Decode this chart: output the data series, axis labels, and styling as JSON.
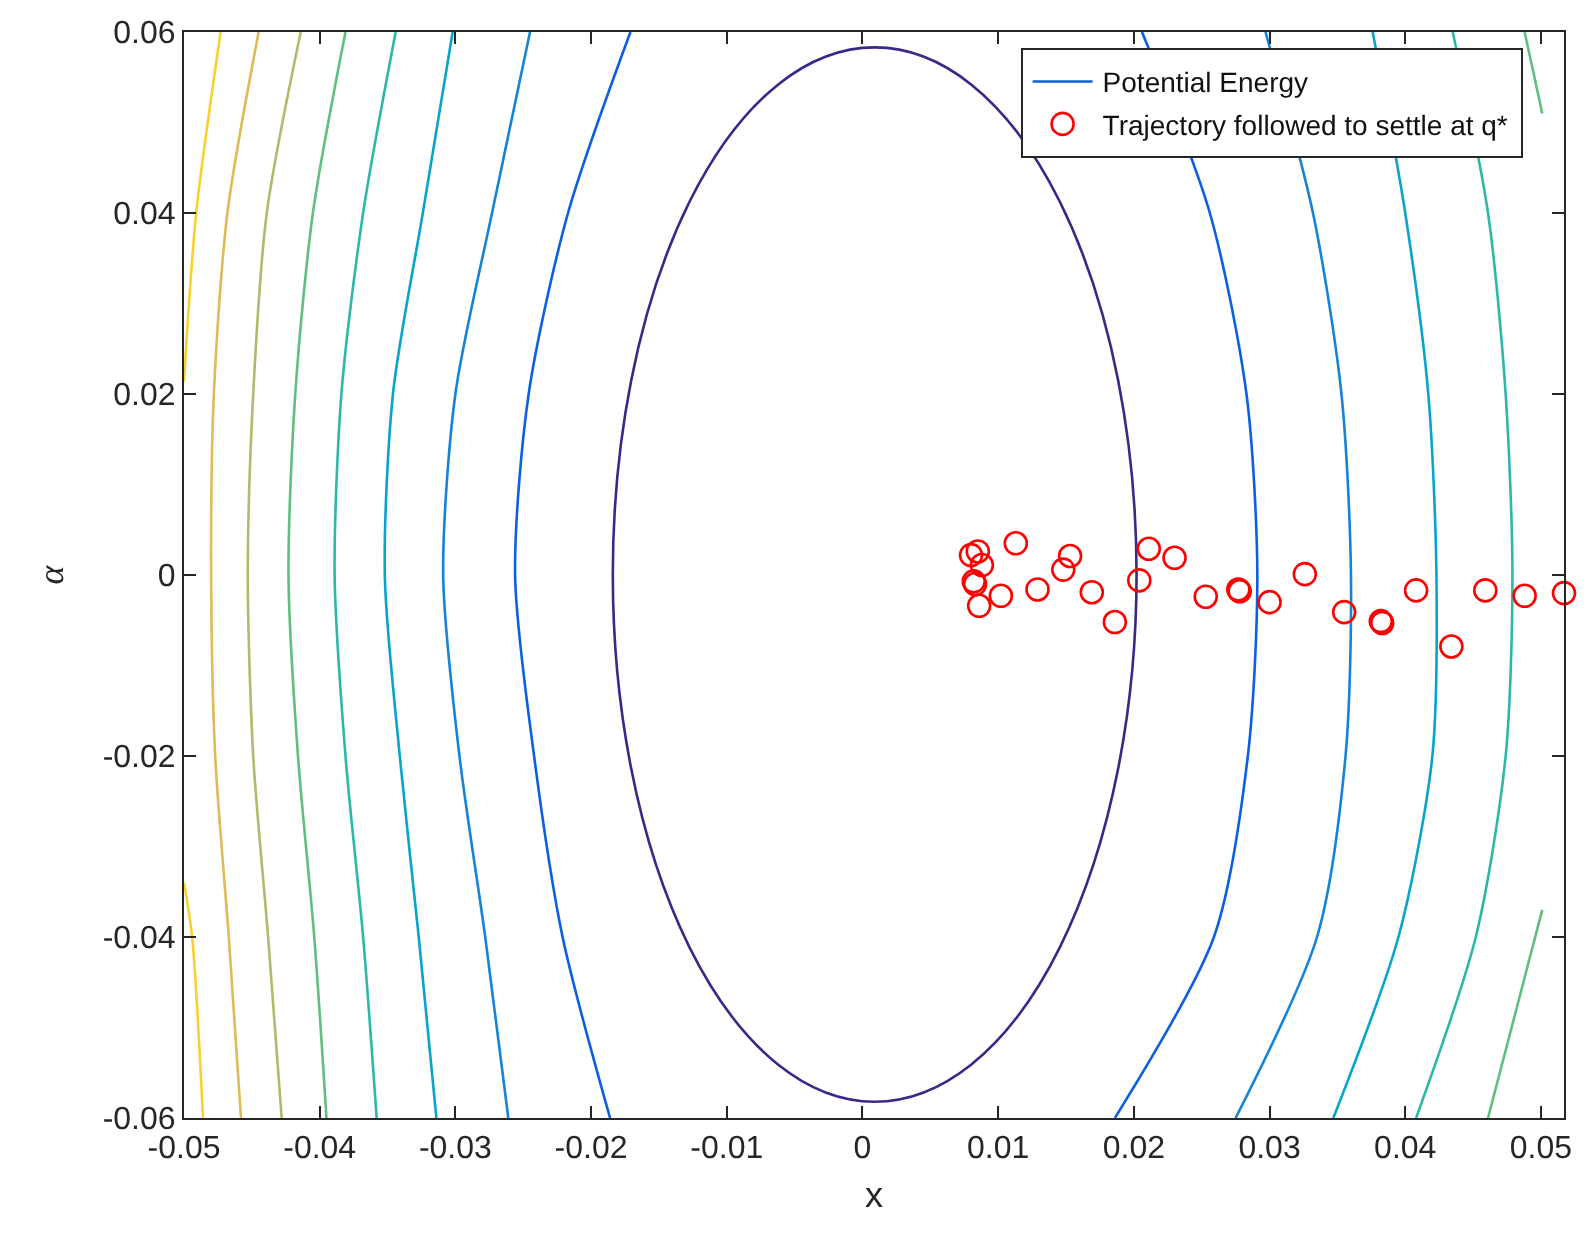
{
  "chart_data": {
    "type": "scatter",
    "xlabel": "x",
    "ylabel": "α",
    "xlim": [
      -0.05,
      0.0517
    ],
    "xticks": [
      -0.05,
      -0.04,
      -0.03,
      -0.02,
      -0.01,
      0,
      0.01,
      0.02,
      0.03,
      0.04,
      0.05
    ],
    "ylim": [
      -0.06,
      0.06
    ],
    "yticks": [
      -0.06,
      -0.04,
      -0.02,
      0,
      0.02,
      0.04,
      0.06
    ],
    "grid": false,
    "legend": "top right",
    "series": [
      {
        "name": "Potential Energy",
        "type": "line",
        "marker": "none",
        "line_style": "solid",
        "color": "#0b5fe0",
        "x": [
          -0.0171,
          -0.0217,
          -0.0246,
          -0.0256,
          -0.0242,
          -0.0221,
          -0.0186
        ],
        "values": [
          0.06,
          0.04,
          0.02,
          0,
          -0.02,
          -0.04,
          -0.06
        ]
      },
      {
        "type": "line",
        "marker": "none",
        "line_style": "solid",
        "color": "#0b5fe0",
        "x": [
          0.0206,
          0.0256,
          0.0283,
          0.0291,
          0.0284,
          0.0259,
          0.0186
        ],
        "values": [
          0.06,
          0.04,
          0.02,
          0,
          -0.02,
          -0.04,
          -0.06
        ]
      },
      {
        "type": "line",
        "marker": "none",
        "line_style": "solid",
        "color": "#1483d8",
        "x": [
          -0.0245,
          -0.0273,
          -0.03,
          -0.0309,
          -0.0297,
          -0.0278,
          -0.0261
        ],
        "values": [
          0.06,
          0.04,
          0.02,
          0,
          -0.02,
          -0.04,
          -0.06
        ]
      },
      {
        "type": "line",
        "marker": "none",
        "line_style": "solid",
        "color": "#1483d8",
        "x": [
          0.0297,
          0.0332,
          0.0353,
          0.036,
          0.0356,
          0.0335,
          0.0275
        ],
        "values": [
          0.06,
          0.04,
          0.02,
          0,
          -0.02,
          -0.04,
          -0.06
        ]
      },
      {
        "type": "line",
        "marker": "none",
        "line_style": "solid",
        "color": "#08a4cc",
        "x": [
          -0.0302,
          -0.0324,
          -0.0346,
          -0.0352,
          -0.0341,
          -0.0327,
          -0.0314
        ],
        "values": [
          0.06,
          0.04,
          0.02,
          0,
          -0.02,
          -0.04,
          -0.06
        ]
      },
      {
        "type": "line",
        "marker": "none",
        "line_style": "solid",
        "color": "#08a4cc",
        "x": [
          0.0376,
          0.04,
          0.0417,
          0.0423,
          0.042,
          0.0395,
          0.0347
        ],
        "values": [
          0.06,
          0.04,
          0.02,
          0,
          -0.02,
          -0.04,
          -0.06
        ]
      },
      {
        "type": "line",
        "marker": "none",
        "line_style": "solid",
        "color": "#2db7a8",
        "x": [
          -0.0344,
          -0.0368,
          -0.0384,
          -0.0389,
          -0.0381,
          -0.0368,
          -0.0358
        ],
        "values": [
          0.06,
          0.04,
          0.02,
          0,
          -0.02,
          -0.04,
          -0.06
        ]
      },
      {
        "type": "line",
        "marker": "none",
        "line_style": "solid",
        "color": "#2db7a8",
        "x": [
          0.0435,
          0.0461,
          0.0474,
          0.0479,
          0.0474,
          0.0452,
          0.0408
        ],
        "values": [
          0.06,
          0.04,
          0.02,
          0,
          -0.02,
          -0.04,
          -0.06
        ]
      },
      {
        "type": "line",
        "marker": "none",
        "line_style": "solid",
        "color": "#5fbf7c",
        "x": [
          -0.0381,
          -0.0405,
          -0.0418,
          -0.0423,
          -0.0416,
          -0.0404,
          -0.0395
        ],
        "values": [
          0.06,
          0.04,
          0.02,
          0,
          -0.02,
          -0.04,
          -0.06
        ]
      },
      {
        "type": "line",
        "marker": "none",
        "line_style": "solid",
        "color": "#5fbf7c",
        "x": [
          0.0488,
          0.0501
        ],
        "values": [
          0.06,
          0.051
        ]
      },
      {
        "type": "line",
        "marker": "none",
        "line_style": "solid",
        "color": "#5fbf7c",
        "x": [
          0.0501,
          0.0461
        ],
        "values": [
          -0.037,
          -0.06
        ]
      },
      {
        "type": "line",
        "marker": "none",
        "line_style": "solid",
        "color": "#a8be6c",
        "x": [
          -0.0414,
          -0.0439,
          -0.0449,
          -0.0453,
          -0.0449,
          -0.0438,
          -0.0428
        ],
        "values": [
          0.06,
          0.04,
          0.02,
          0,
          -0.02,
          -0.04,
          -0.06
        ]
      },
      {
        "type": "line",
        "marker": "none",
        "line_style": "solid",
        "color": "#e0b958",
        "x": [
          -0.0445,
          -0.0468,
          -0.0478,
          -0.048,
          -0.0477,
          -0.0467,
          -0.0458
        ],
        "values": [
          0.06,
          0.04,
          0.02,
          0,
          -0.02,
          -0.04,
          -0.06
        ]
      },
      {
        "type": "line",
        "marker": "none",
        "line_style": "solid",
        "color": "#f9d02f",
        "x": [
          -0.0473,
          -0.0491,
          -0.05
        ],
        "values": [
          0.06,
          0.04,
          0.0214
        ]
      },
      {
        "type": "line",
        "marker": "none",
        "line_style": "solid",
        "color": "#f9d02f",
        "x": [
          -0.05,
          -0.0494,
          -0.0486
        ],
        "values": [
          -0.034,
          -0.04,
          -0.06
        ]
      },
      {
        "name": "Trajectory followed to settle at q*",
        "type": "scatter",
        "marker": "circle",
        "color": "#ff0000",
        "x": [
          0.008,
          0.0085,
          0.0088,
          0.0082,
          0.0083,
          0.0086,
          0.0102,
          0.0113,
          0.0129,
          0.0148,
          0.0153,
          0.0169,
          0.0186,
          0.0204,
          0.0211,
          0.023,
          0.0253,
          0.0277,
          0.0278,
          0.03,
          0.0326,
          0.0355,
          0.0382,
          0.0383,
          0.0408,
          0.0434,
          0.0459,
          0.0488,
          0.0517
        ],
        "values": [
          0.0022,
          0.0026,
          0.0011,
          -0.0007,
          -0.001,
          -0.0034,
          -0.0023,
          0.0035,
          -0.0016,
          0.0006,
          0.0021,
          -0.0019,
          -0.0052,
          -0.0006,
          0.0029,
          0.0019,
          -0.0024,
          -0.0016,
          -0.0018,
          -0.003,
          0.0001,
          -0.0041,
          -0.0051,
          -0.0053,
          -0.0017,
          -0.0079,
          -0.0017,
          -0.0023,
          -0.002
        ]
      }
    ]
  }
}
